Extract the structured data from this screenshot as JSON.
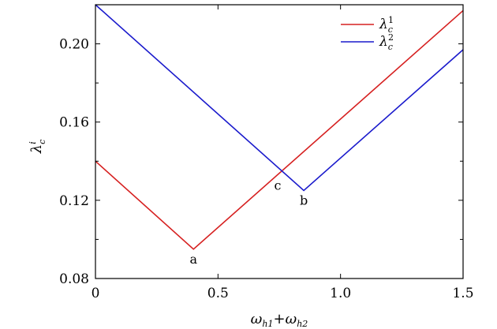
{
  "chart_data": {
    "type": "line",
    "xlabel": "ω_{h1}+ω_{h2}",
    "ylabel": "λ_c^i",
    "xlim": [
      0,
      1.5
    ],
    "ylim": [
      0.08,
      0.22
    ],
    "xticks": [
      0,
      0.5,
      1.0,
      1.5
    ],
    "xtick_labels": [
      "0",
      "0.5",
      "1.0",
      "1.5"
    ],
    "yticks": [
      0.08,
      0.12,
      0.16,
      0.2
    ],
    "ytick_labels": [
      "0.08",
      "0.12",
      "0.16",
      "0.20"
    ],
    "y_minor_ticks": [
      0.1,
      0.14,
      0.18
    ],
    "grid": false,
    "legend_position": "top-right",
    "series": [
      {
        "name": "λ_c^1",
        "label_main": "λ",
        "label_sub": "c",
        "label_sup": "1",
        "color": "#d62020",
        "x": [
          0,
          0.4,
          1.5
        ],
        "y": [
          0.14,
          0.095,
          0.217
        ]
      },
      {
        "name": "λ_c^2",
        "label_main": "λ",
        "label_sub": "c",
        "label_sup": "2",
        "color": "#1a1acc",
        "x": [
          0,
          0.85,
          1.5
        ],
        "y": [
          0.22,
          0.125,
          0.197
        ]
      }
    ],
    "annotations": [
      {
        "text": "a",
        "x": 0.4,
        "y": 0.095,
        "anchor": "below"
      },
      {
        "text": "b",
        "x": 0.85,
        "y": 0.125,
        "anchor": "below"
      },
      {
        "text": "c",
        "x": 0.763,
        "y": 0.135,
        "anchor": "below-left"
      }
    ]
  }
}
